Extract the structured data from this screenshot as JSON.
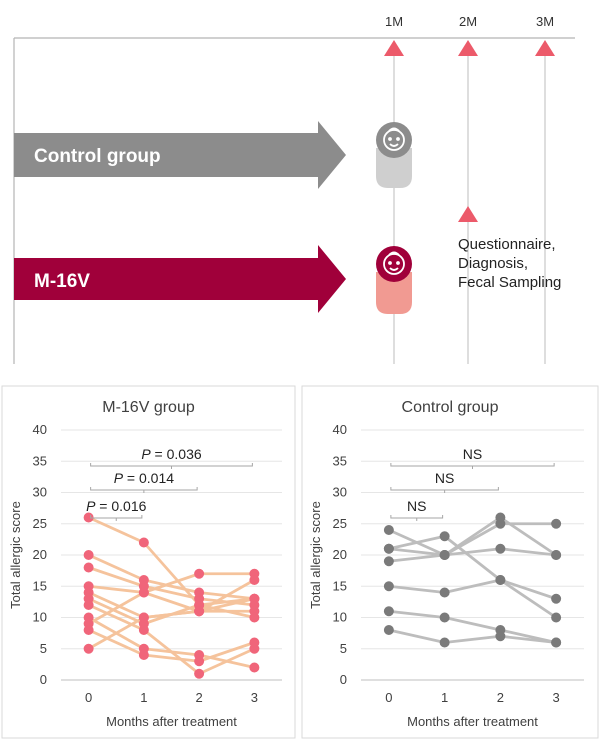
{
  "timeline": {
    "months": [
      "1M",
      "2M",
      "3M"
    ],
    "groups": [
      {
        "label": "Control group",
        "color": "#8c8c8c",
        "cup": "#cfcfcf",
        "badge": "#8c8c8c"
      },
      {
        "label": "M-16V",
        "color": "#a0003a",
        "cup": "#f19a92",
        "badge": "#a0003a"
      }
    ],
    "note": [
      "Questionnaire,",
      "Diagnosis,",
      "Fecal Sampling"
    ],
    "colors": {
      "marker": "#ec5a6a",
      "axis": "#b5b5b5"
    }
  },
  "chart_data": [
    {
      "type": "line",
      "title": "M-16V group",
      "xlabel": "Months after treatment",
      "ylabel": "Total allergic score",
      "x": [
        0,
        1,
        2,
        3
      ],
      "ylim": [
        0,
        40
      ],
      "yticks": [
        0,
        5,
        10,
        15,
        20,
        25,
        30,
        35,
        40
      ],
      "grid": true,
      "line_color": "#f5c39c",
      "point_color": "#f0657a",
      "series": [
        {
          "values": [
            26,
            22,
            12,
            13
          ]
        },
        {
          "values": [
            20,
            16,
            14,
            13
          ]
        },
        {
          "values": [
            18,
            15,
            13,
            12
          ]
        },
        {
          "values": [
            15,
            14,
            17,
            17
          ]
        },
        {
          "values": [
            14,
            10,
            11,
            11
          ]
        },
        {
          "values": [
            13,
            9,
            12,
            10
          ]
        },
        {
          "values": [
            12,
            8,
            1,
            5
          ]
        },
        {
          "values": [
            10,
            5,
            4,
            2
          ]
        },
        {
          "values": [
            9,
            14,
            11,
            16
          ]
        },
        {
          "values": [
            8,
            4,
            3,
            6
          ]
        },
        {
          "values": [
            5,
            10,
            11,
            13
          ]
        }
      ],
      "annotations": [
        {
          "text": "P = 0.036",
          "from": 0,
          "to": 3
        },
        {
          "text": "P = 0.014",
          "from": 0,
          "to": 2
        },
        {
          "text": "P = 0.016",
          "from": 0,
          "to": 1
        }
      ]
    },
    {
      "type": "line",
      "title": "Control group",
      "xlabel": "Months after treatment",
      "ylabel": "Total allergic score",
      "x": [
        0,
        1,
        2,
        3
      ],
      "ylim": [
        0,
        40
      ],
      "yticks": [
        0,
        5,
        10,
        15,
        20,
        25,
        30,
        35,
        40
      ],
      "grid": true,
      "line_color": "#bdbdbd",
      "point_color": "#7a7a7a",
      "series": [
        {
          "values": [
            24,
            20,
            26,
            20
          ]
        },
        {
          "values": [
            21,
            23,
            16,
            10
          ]
        },
        {
          "values": [
            21,
            20,
            25,
            25
          ]
        },
        {
          "values": [
            19,
            20,
            21,
            20
          ]
        },
        {
          "values": [
            15,
            14,
            16,
            13
          ]
        },
        {
          "values": [
            11,
            10,
            8,
            6
          ]
        },
        {
          "values": [
            8,
            6,
            7,
            6
          ]
        }
      ],
      "annotations": [
        {
          "text": "NS",
          "from": 0,
          "to": 3
        },
        {
          "text": "NS",
          "from": 0,
          "to": 2
        },
        {
          "text": "NS",
          "from": 0,
          "to": 1
        }
      ]
    }
  ]
}
